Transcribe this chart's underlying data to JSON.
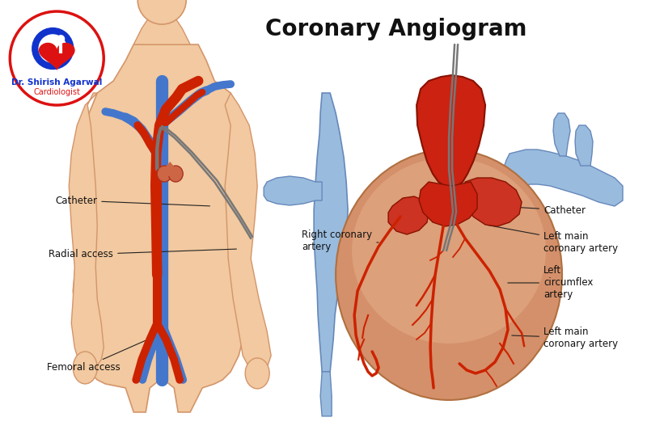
{
  "title": "Coronary Angiogram",
  "title_fontsize": 20,
  "title_fontweight": "bold",
  "background_color": "#ffffff",
  "labels": {
    "catheter_left": "Catheter",
    "radial_access": "Radial access",
    "femoral_access": "Femoral access",
    "catheter_right": "Catheter",
    "right_coronary_artery": "Right coronary\nartery",
    "left_main_coronary_artery_top": "Left main\ncoronary artery",
    "left_circumflex_artery": "Left\ncircumflex\nartery",
    "left_main_coronary_artery_bottom": "Left main\ncoronary artery"
  },
  "colors": {
    "artery_red": "#cc2200",
    "artery_red2": "#bb1100",
    "vein_blue": "#4477cc",
    "skin": "#f2c9a0",
    "skin_shadow": "#e0aa80",
    "skin_dark": "#d4956a",
    "heart_red": "#cc2211",
    "heart_body": "#d4906a",
    "heart_yellow": "#d4a860",
    "catheter_gray": "#777777",
    "blue_vessel": "#7099cc",
    "blue_vessel_light": "#99bbdd",
    "annotation_line": "#222222",
    "logo_red": "#dd1111",
    "logo_blue": "#1133cc"
  },
  "annotation_fontsize": 8.5,
  "label_color": "#111111"
}
